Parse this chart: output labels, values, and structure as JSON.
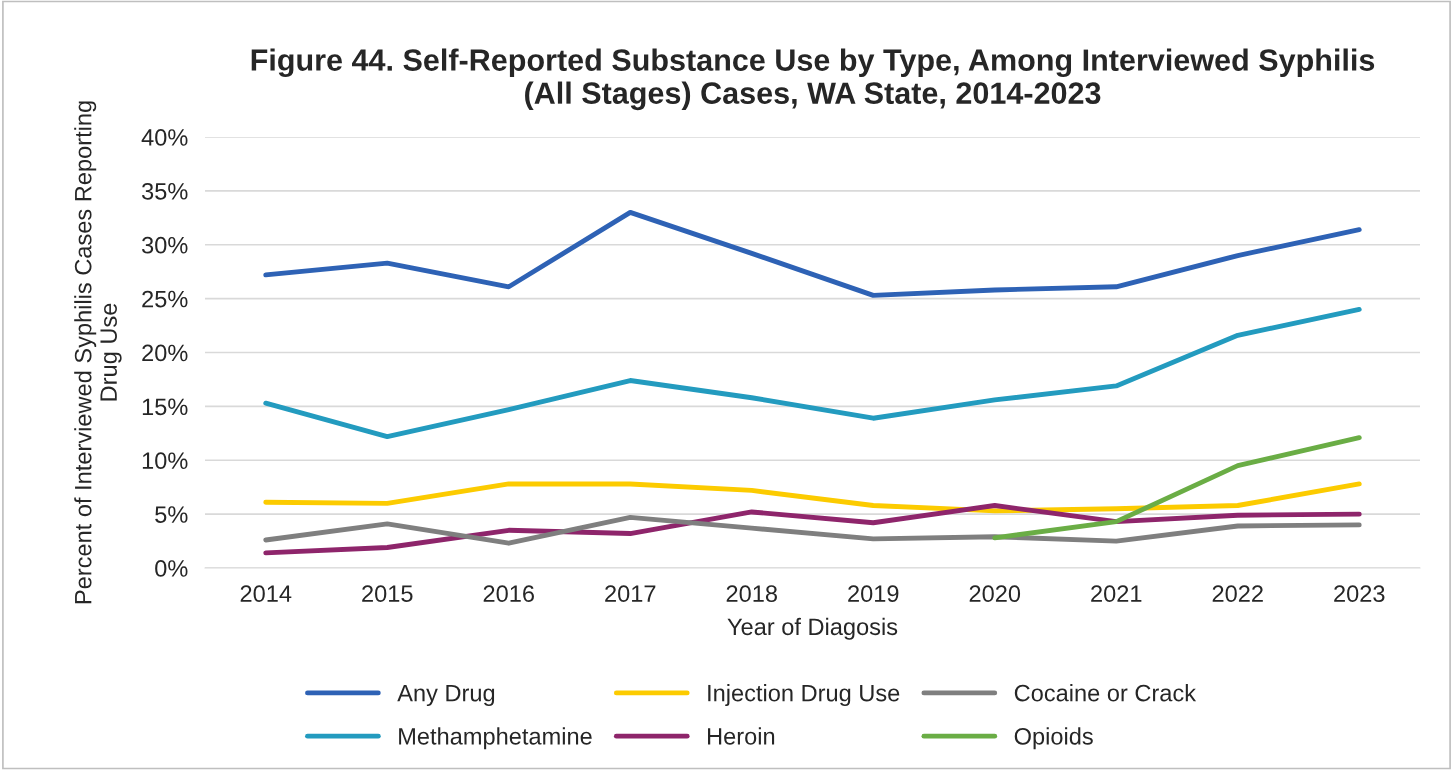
{
  "chart_data": {
    "type": "line",
    "title": "Figure 44. Self-Reported Substance Use by Type, Among Interviewed Syphilis\n(All Stages) Cases, WA State, 2014-2023",
    "xlabel": "Year of Diagosis",
    "ylabel": "Percent of Interviewed Syphilis Cases Reporting\nDrug Use",
    "categories": [
      "2014",
      "2015",
      "2016",
      "2017",
      "2018",
      "2019",
      "2020",
      "2021",
      "2022",
      "2023"
    ],
    "ylim": [
      0,
      40
    ],
    "yticks": [
      {
        "value": 0,
        "label": "0%"
      },
      {
        "value": 5,
        "label": "5%"
      },
      {
        "value": 10,
        "label": "10%"
      },
      {
        "value": 15,
        "label": "15%"
      },
      {
        "value": 20,
        "label": "20%"
      },
      {
        "value": 25,
        "label": "25%"
      },
      {
        "value": 30,
        "label": "30%"
      },
      {
        "value": 35,
        "label": "35%"
      },
      {
        "value": 40,
        "label": "40%"
      }
    ],
    "grid": "y",
    "legend": "bottom",
    "marker": "none",
    "line_style": "solid",
    "series": [
      {
        "name": "Any Drug",
        "color": "#2e62b5",
        "values": [
          27.2,
          28.3,
          26.1,
          33.0,
          29.2,
          25.3,
          25.8,
          26.1,
          29.0,
          31.4
        ]
      },
      {
        "name": "Methamphetamine",
        "color": "#239bbf",
        "values": [
          15.3,
          12.2,
          14.7,
          17.4,
          15.8,
          13.9,
          15.6,
          16.9,
          21.6,
          24.0
        ]
      },
      {
        "name": "Injection Drug Use",
        "color": "#fccb00",
        "values": [
          6.1,
          6.0,
          7.8,
          7.8,
          7.2,
          5.8,
          5.3,
          5.5,
          5.8,
          7.8
        ]
      },
      {
        "name": "Heroin",
        "color": "#8e256b",
        "values": [
          1.4,
          1.9,
          3.5,
          3.2,
          5.2,
          4.2,
          5.8,
          4.3,
          4.9,
          5.0
        ]
      },
      {
        "name": "Cocaine or Crack",
        "color": "#7f7f7f",
        "values": [
          2.6,
          4.1,
          2.3,
          4.7,
          3.7,
          2.7,
          2.9,
          2.5,
          3.9,
          4.0
        ]
      },
      {
        "name": "Opioids",
        "color": "#6aad45",
        "values": [
          null,
          null,
          null,
          null,
          null,
          null,
          2.8,
          4.3,
          9.5,
          12.1
        ]
      }
    ]
  }
}
